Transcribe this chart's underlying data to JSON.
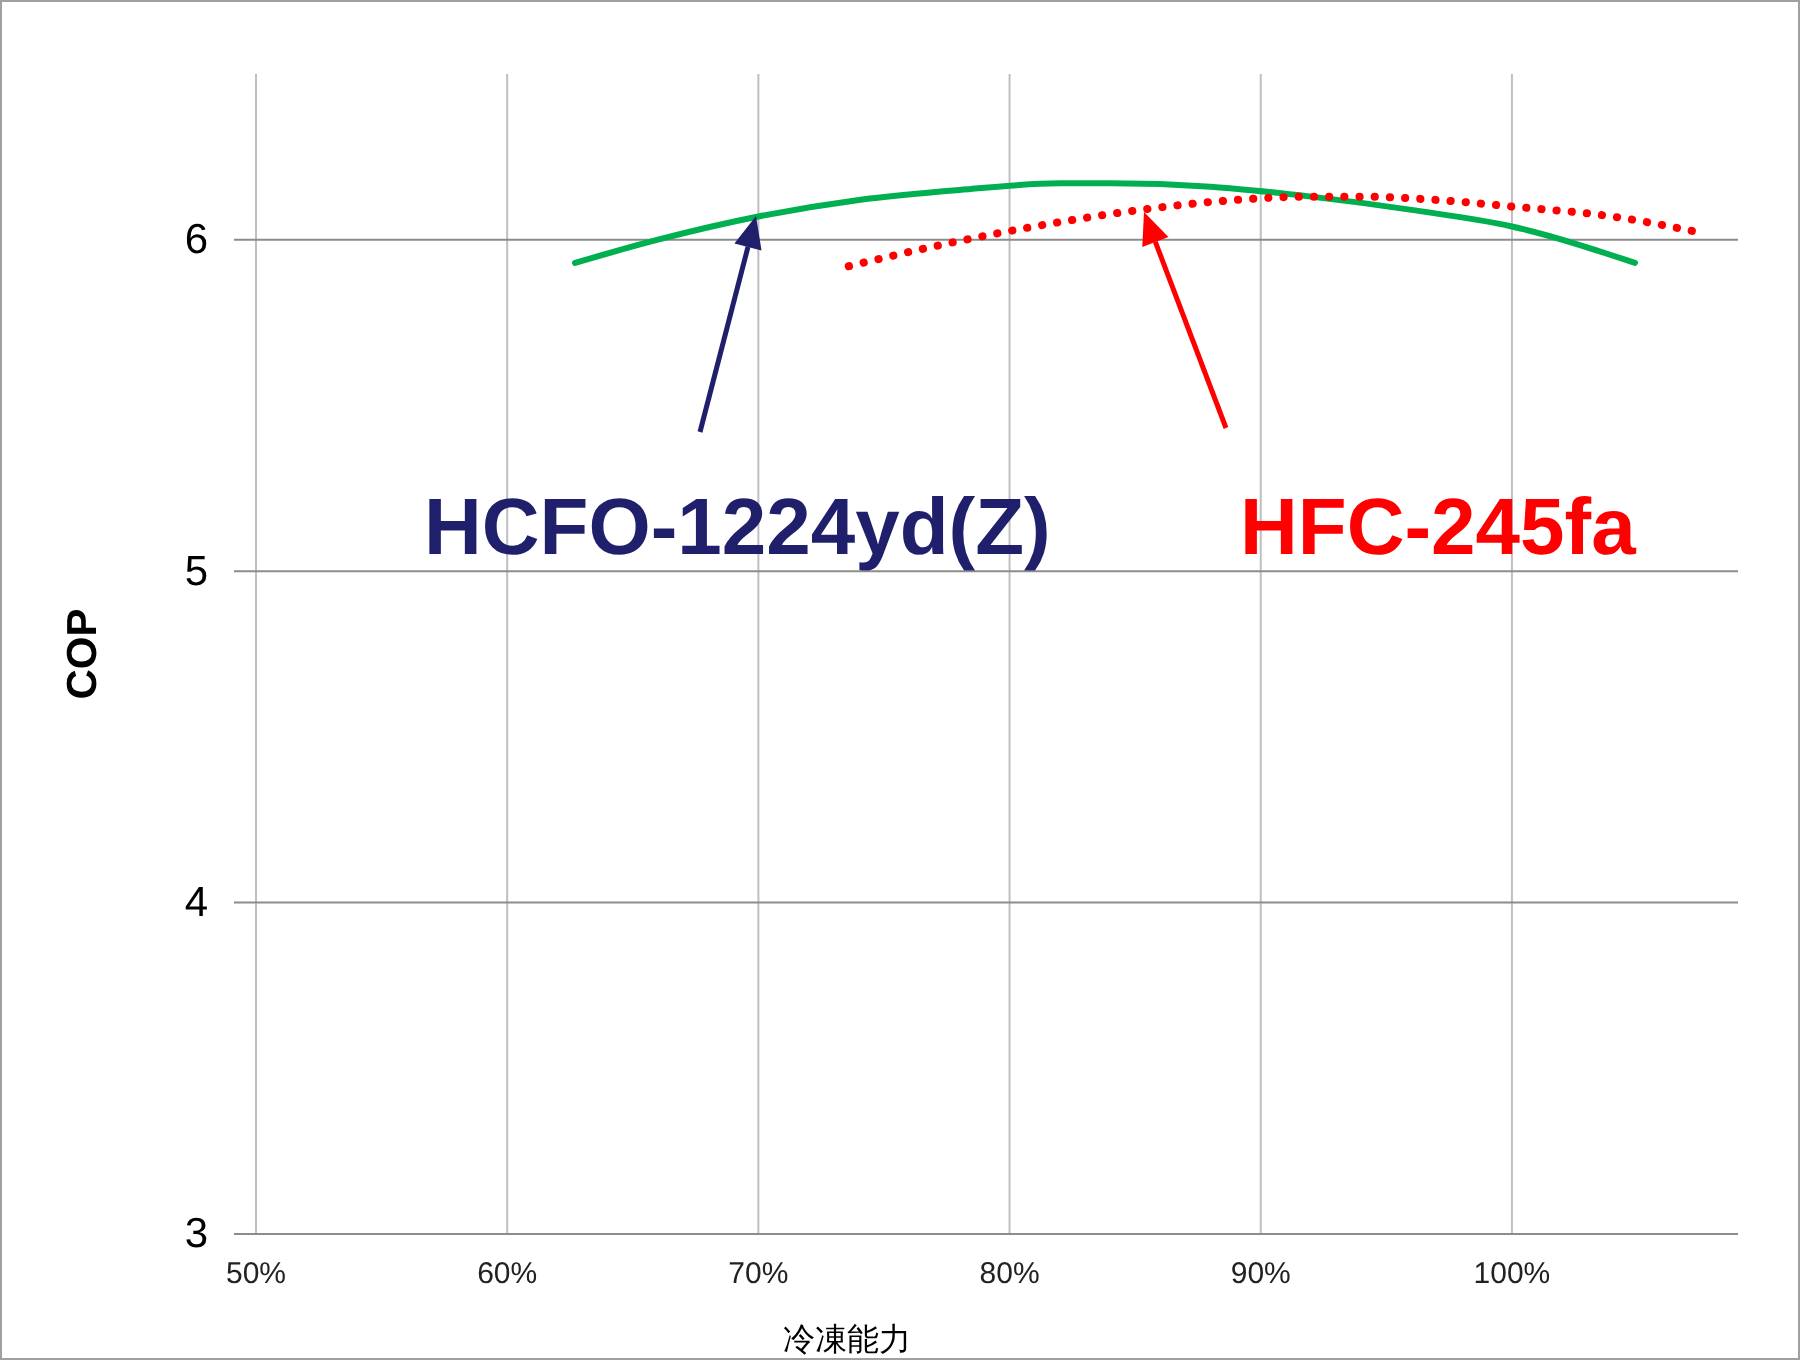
{
  "chart_data": {
    "type": "line",
    "xlabel": "冷凍能力",
    "ylabel": "COP",
    "xlim": [
      50,
      109
    ],
    "ylim": [
      3,
      6.5
    ],
    "xticks": [
      {
        "value": 50,
        "label": "50%"
      },
      {
        "value": 60,
        "label": "60%"
      },
      {
        "value": 70,
        "label": "70%"
      },
      {
        "value": 80,
        "label": "80%"
      },
      {
        "value": 90,
        "label": "90%"
      },
      {
        "value": 100,
        "label": "100%"
      }
    ],
    "yticks": [
      3,
      4,
      5,
      6
    ],
    "grid": true,
    "series": [
      {
        "color": "#00b050",
        "line_style": "solid",
        "x": [
          62.7,
          66,
          70,
          74,
          78,
          82,
          84,
          88,
          92,
          96,
          100,
          104.9
        ],
        "values": [
          5.93,
          6.0,
          6.07,
          6.12,
          6.15,
          6.17,
          6.17,
          6.16,
          6.13,
          6.09,
          6.04,
          5.93
        ]
      },
      {
        "color": "#ff0000",
        "line_style": "dotted",
        "x": [
          73.6,
          77,
          81,
          85.2,
          89,
          92,
          94,
          97,
          100,
          104,
          107.6
        ],
        "values": [
          5.92,
          5.98,
          6.04,
          6.09,
          6.12,
          6.13,
          6.13,
          6.12,
          6.1,
          6.07,
          6.02
        ]
      }
    ],
    "annotations": [
      "HCFO-1224yd(Z)",
      "HFC-245fa"
    ]
  }
}
